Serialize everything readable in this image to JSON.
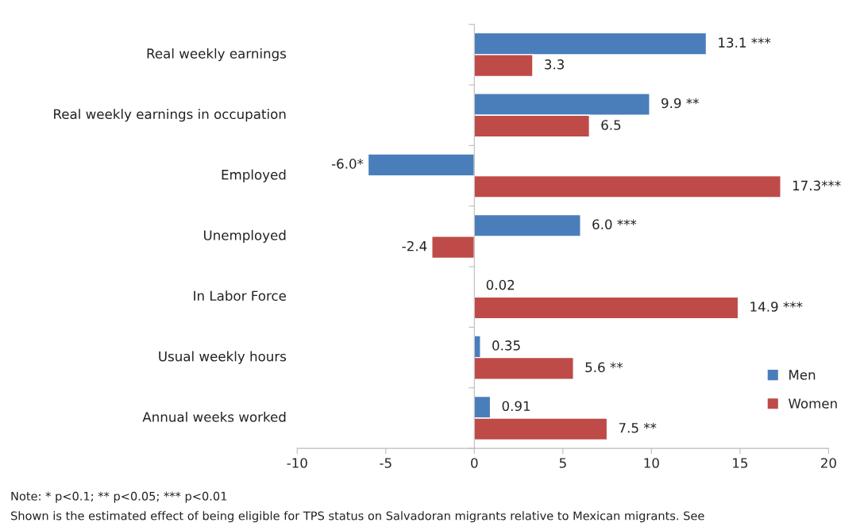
{
  "chart_data": {
    "type": "bar",
    "orientation": "horizontal",
    "categories": [
      "Real weekly earnings",
      "Real weekly earnings in occupation",
      "Employed",
      "Unemployed",
      "In Labor Force",
      "Usual weekly hours",
      "Annual weeks worked"
    ],
    "series": [
      {
        "name": "Men",
        "color": "#4a7ebb",
        "values": [
          13.1,
          9.9,
          -6.0,
          6.0,
          0.02,
          0.35,
          0.91
        ],
        "value_labels": [
          "13.1 ***",
          "9.9 **",
          "-6.0*",
          "6.0 ***",
          "0.02",
          "0.35",
          "0.91"
        ]
      },
      {
        "name": "Women",
        "color": "#be4b48",
        "values": [
          3.3,
          6.5,
          17.3,
          -2.4,
          14.9,
          5.6,
          7.5
        ],
        "value_labels": [
          "3.3",
          "6.5",
          "17.3***",
          "-2.4",
          "14.9 ***",
          "5.6 **",
          "7.5 **"
        ]
      }
    ],
    "xlim": [
      -10,
      20
    ],
    "xticks": [
      -10,
      -5,
      0,
      5,
      10,
      15,
      20
    ],
    "legend": "bottom right",
    "annotations": [
      "Note: * p<0.1; ** p<0.05; *** p<0.01",
      "Shown is the estimated effect of being eligible for TPS status on Salvadoran migrants relative to Mexican migrants. See"
    ]
  }
}
